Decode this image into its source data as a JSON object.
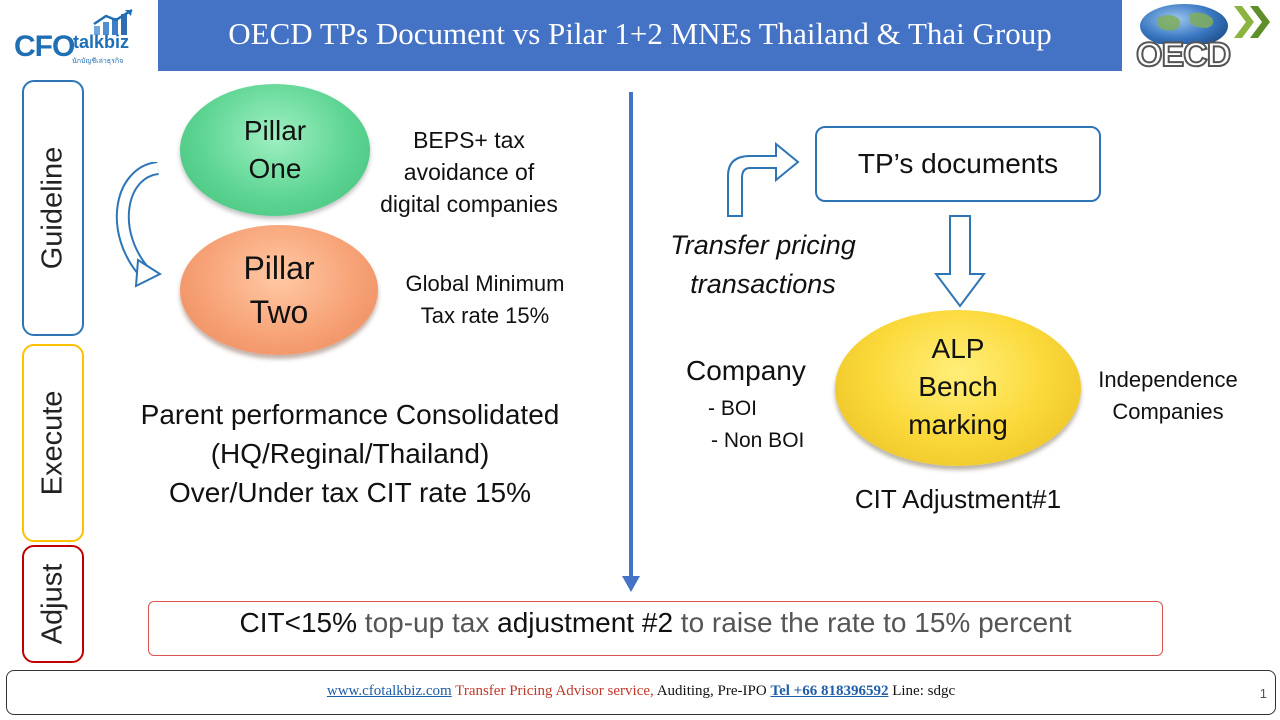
{
  "header": {
    "logo_left": {
      "cfo": "CFO",
      "talkbiz": "talkbiz",
      "tagline": "นักบัญชีเล่าธุรกิจ"
    },
    "title": "OECD TPs Document vs Pilar 1+2 MNEs Thailand & Thai Group",
    "logo_right": {
      "text": "OECD"
    }
  },
  "side_tabs": [
    {
      "label": "Guideline",
      "color": "#2e75b6"
    },
    {
      "label": "Execute",
      "color": "#ffc000"
    },
    {
      "label": "Adjust",
      "color": "#c00000"
    }
  ],
  "left": {
    "pillar_one": {
      "line1": "Pillar",
      "line2": "One"
    },
    "pillar_one_desc": [
      "BEPS+ tax",
      "avoidance of",
      "digital companies"
    ],
    "pillar_two": {
      "line1": "Pillar",
      "line2": "Two"
    },
    "pillar_two_desc": [
      "Global Minimum",
      "Tax rate 15%"
    ],
    "execute_text": [
      "Parent performance Consolidated",
      "(HQ/Reginal/Thailand)",
      "Over/Under tax CIT rate 15%"
    ]
  },
  "right": {
    "tp_documents": "TP’s documents",
    "transfer_pricing": [
      "Transfer pricing",
      "transactions"
    ],
    "company": {
      "title": "Company",
      "items": [
        "- BOI",
        "- Non BOI"
      ]
    },
    "alp": [
      "ALP",
      "Bench",
      "marking"
    ],
    "independence": [
      "Independence",
      "Companies"
    ],
    "cit_adjustment": "CIT Adjustment#1"
  },
  "adjust": {
    "part1": "CIT<15%",
    "part2": " top-up tax ",
    "part3": "adjustment #2",
    "part4": " to raise the rate to 15% percent"
  },
  "footer": {
    "website": "www.cfotalkbiz.com",
    "service": " Transfer Pricing Advisor service, ",
    "services2": " Auditing, Pre-IPO ",
    "phone": "Tel +66 818396592",
    "line": " Line: sdgc",
    "page": "1"
  },
  "colors": {
    "title_bar": "#4472c4",
    "divider": "#4472c4",
    "arrow_outline": "#2e75b6"
  }
}
